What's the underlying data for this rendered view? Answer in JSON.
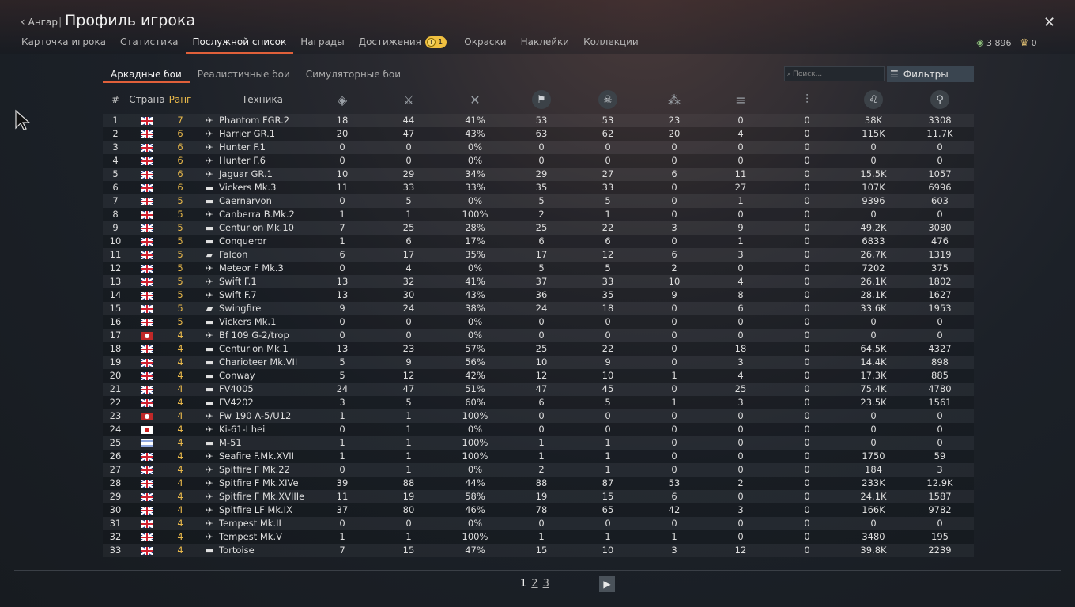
{
  "header": {
    "back_label": "Ангар",
    "title": "Профиль игрока",
    "tabs": [
      {
        "label": "Карточка игрока"
      },
      {
        "label": "Статистика"
      },
      {
        "label": "Послужной список"
      },
      {
        "label": "Награды"
      },
      {
        "label": "Достижения",
        "badge": "1"
      },
      {
        "label": "Окраски"
      },
      {
        "label": "Наклейки"
      },
      {
        "label": "Коллекции"
      }
    ],
    "currency_lions": "3 896",
    "currency_eagles": "0"
  },
  "modes": [
    {
      "label": "Аркадные бои"
    },
    {
      "label": "Реалистичные бои"
    },
    {
      "label": "Симуляторные бои"
    }
  ],
  "search": {
    "placeholder": "Поиск..."
  },
  "filters_label": "Фильтры",
  "table": {
    "headers": {
      "num": "#",
      "country": "Страна",
      "rank": "Ранг",
      "vehicle": "Техника"
    },
    "stat_icons": [
      "battles-icon",
      "victories-icon",
      "win-rate-icon",
      "respawns-icon",
      "deaths-icon",
      "air-kills-icon",
      "ground-kills-icon",
      "naval-kills-icon",
      "silver-lions-icon",
      "research-points-icon"
    ],
    "rows": [
      {
        "n": "1",
        "flag": "uk",
        "rank": "7",
        "type": "jet",
        "name": "Phantom FGR.2",
        "s": [
          "18",
          "44",
          "41%",
          "53",
          "53",
          "23",
          "0",
          "0",
          "38K",
          "3308"
        ]
      },
      {
        "n": "2",
        "flag": "uk",
        "rank": "6",
        "type": "jet",
        "name": "Harrier GR.1",
        "s": [
          "20",
          "47",
          "43%",
          "63",
          "62",
          "20",
          "4",
          "0",
          "115K",
          "11.7K"
        ]
      },
      {
        "n": "3",
        "flag": "uk",
        "rank": "6",
        "type": "jet",
        "name": "Hunter F.1",
        "s": [
          "0",
          "0",
          "0%",
          "0",
          "0",
          "0",
          "0",
          "0",
          "0",
          "0"
        ]
      },
      {
        "n": "4",
        "flag": "uk",
        "rank": "6",
        "type": "jet",
        "name": "Hunter F.6",
        "s": [
          "0",
          "0",
          "0%",
          "0",
          "0",
          "0",
          "0",
          "0",
          "0",
          "0"
        ]
      },
      {
        "n": "5",
        "flag": "uk",
        "rank": "6",
        "type": "jet",
        "name": "Jaguar GR.1",
        "s": [
          "10",
          "29",
          "34%",
          "29",
          "27",
          "6",
          "11",
          "0",
          "15.5K",
          "1057"
        ]
      },
      {
        "n": "6",
        "flag": "uk",
        "rank": "6",
        "type": "tank",
        "name": "Vickers Mk.3",
        "s": [
          "11",
          "33",
          "33%",
          "35",
          "33",
          "0",
          "27",
          "0",
          "107K",
          "6996"
        ]
      },
      {
        "n": "7",
        "flag": "uk",
        "rank": "5",
        "type": "tank",
        "name": "Caernarvon",
        "s": [
          "0",
          "5",
          "0%",
          "5",
          "5",
          "0",
          "1",
          "0",
          "9396",
          "603"
        ]
      },
      {
        "n": "8",
        "flag": "uk",
        "rank": "5",
        "type": "plane",
        "name": "Canberra B.Mk.2",
        "s": [
          "1",
          "1",
          "100%",
          "2",
          "1",
          "0",
          "0",
          "0",
          "0",
          "0"
        ]
      },
      {
        "n": "9",
        "flag": "uk",
        "rank": "5",
        "type": "tank",
        "name": "Centurion Mk.10",
        "s": [
          "7",
          "25",
          "28%",
          "25",
          "22",
          "3",
          "9",
          "0",
          "49.2K",
          "3080"
        ]
      },
      {
        "n": "10",
        "flag": "uk",
        "rank": "5",
        "type": "tank",
        "name": "Conqueror",
        "s": [
          "1",
          "6",
          "17%",
          "6",
          "6",
          "0",
          "1",
          "0",
          "6833",
          "476"
        ]
      },
      {
        "n": "11",
        "flag": "uk",
        "rank": "5",
        "type": "spaa",
        "name": "Falcon",
        "s": [
          "6",
          "17",
          "35%",
          "17",
          "12",
          "6",
          "3",
          "0",
          "26.7K",
          "1319"
        ]
      },
      {
        "n": "12",
        "flag": "uk",
        "rank": "5",
        "type": "jet",
        "name": "Meteor F Mk.3",
        "s": [
          "0",
          "4",
          "0%",
          "5",
          "5",
          "2",
          "0",
          "0",
          "7202",
          "375"
        ]
      },
      {
        "n": "13",
        "flag": "uk",
        "rank": "5",
        "type": "jet",
        "name": "Swift F.1",
        "s": [
          "13",
          "32",
          "41%",
          "37",
          "33",
          "10",
          "4",
          "0",
          "26.1K",
          "1802"
        ]
      },
      {
        "n": "14",
        "flag": "uk",
        "rank": "5",
        "type": "jet",
        "name": "Swift F.7",
        "s": [
          "13",
          "30",
          "43%",
          "36",
          "35",
          "9",
          "8",
          "0",
          "28.1K",
          "1627"
        ]
      },
      {
        "n": "15",
        "flag": "uk",
        "rank": "5",
        "type": "spaa",
        "name": "Swingfire",
        "s": [
          "9",
          "24",
          "38%",
          "24",
          "18",
          "0",
          "6",
          "0",
          "33.6K",
          "1953"
        ]
      },
      {
        "n": "16",
        "flag": "uk",
        "rank": "5",
        "type": "tank",
        "name": "Vickers Mk.1",
        "s": [
          "0",
          "0",
          "0%",
          "0",
          "0",
          "0",
          "0",
          "0",
          "0",
          "0"
        ]
      },
      {
        "n": "17",
        "flag": "de",
        "rank": "4",
        "type": "plane",
        "name": "Bf 109 G-2/trop",
        "s": [
          "0",
          "0",
          "0%",
          "0",
          "0",
          "0",
          "0",
          "0",
          "0",
          "0"
        ]
      },
      {
        "n": "18",
        "flag": "uk",
        "rank": "4",
        "type": "tank",
        "name": "Centurion Mk.1",
        "s": [
          "13",
          "23",
          "57%",
          "25",
          "22",
          "0",
          "18",
          "0",
          "64.5K",
          "4327"
        ]
      },
      {
        "n": "19",
        "flag": "uk",
        "rank": "4",
        "type": "tank",
        "name": "Charioteer Mk.VII",
        "s": [
          "5",
          "9",
          "56%",
          "10",
          "9",
          "0",
          "3",
          "0",
          "14.4K",
          "898"
        ]
      },
      {
        "n": "20",
        "flag": "uk",
        "rank": "4",
        "type": "tank",
        "name": "Conway",
        "s": [
          "5",
          "12",
          "42%",
          "12",
          "10",
          "1",
          "4",
          "0",
          "17.3K",
          "885"
        ]
      },
      {
        "n": "21",
        "flag": "uk",
        "rank": "4",
        "type": "tank",
        "name": "FV4005",
        "s": [
          "24",
          "47",
          "51%",
          "47",
          "45",
          "0",
          "25",
          "0",
          "75.4K",
          "4780"
        ]
      },
      {
        "n": "22",
        "flag": "uk",
        "rank": "4",
        "type": "tank",
        "name": "FV4202",
        "s": [
          "3",
          "5",
          "60%",
          "6",
          "5",
          "1",
          "3",
          "0",
          "23.5K",
          "1561"
        ]
      },
      {
        "n": "23",
        "flag": "de",
        "rank": "4",
        "type": "plane",
        "name": "Fw 190 A-5/U12",
        "s": [
          "1",
          "1",
          "100%",
          "0",
          "0",
          "0",
          "0",
          "0",
          "0",
          "0"
        ]
      },
      {
        "n": "24",
        "flag": "jp",
        "rank": "4",
        "type": "plane",
        "name": "Ki-61-I hei",
        "s": [
          "0",
          "1",
          "0%",
          "0",
          "0",
          "0",
          "0",
          "0",
          "0",
          "0"
        ]
      },
      {
        "n": "25",
        "flag": "il",
        "rank": "4",
        "type": "tank",
        "name": "M-51",
        "s": [
          "1",
          "1",
          "100%",
          "1",
          "1",
          "0",
          "0",
          "0",
          "0",
          "0"
        ]
      },
      {
        "n": "26",
        "flag": "uk",
        "rank": "4",
        "type": "plane",
        "name": "Seafire F.Mk.XVII",
        "s": [
          "1",
          "1",
          "100%",
          "1",
          "1",
          "0",
          "0",
          "0",
          "1750",
          "59"
        ]
      },
      {
        "n": "27",
        "flag": "uk",
        "rank": "4",
        "type": "plane",
        "name": "Spitfire F Mk.22",
        "s": [
          "0",
          "1",
          "0%",
          "2",
          "1",
          "0",
          "0",
          "0",
          "184",
          "3"
        ]
      },
      {
        "n": "28",
        "flag": "uk",
        "rank": "4",
        "type": "plane",
        "name": "Spitfire F Mk.XIVe",
        "s": [
          "39",
          "88",
          "44%",
          "88",
          "87",
          "53",
          "2",
          "0",
          "233K",
          "12.9K"
        ]
      },
      {
        "n": "29",
        "flag": "uk",
        "rank": "4",
        "type": "plane",
        "name": "Spitfire F Mk.XVIIIe",
        "s": [
          "11",
          "19",
          "58%",
          "19",
          "15",
          "6",
          "0",
          "0",
          "24.1K",
          "1587"
        ]
      },
      {
        "n": "30",
        "flag": "uk",
        "rank": "4",
        "type": "plane",
        "name": "Spitfire LF Mk.IX",
        "s": [
          "37",
          "80",
          "46%",
          "78",
          "65",
          "42",
          "3",
          "0",
          "166K",
          "9782"
        ]
      },
      {
        "n": "31",
        "flag": "uk",
        "rank": "4",
        "type": "plane",
        "name": "Tempest Mk.II",
        "s": [
          "0",
          "0",
          "0%",
          "0",
          "0",
          "0",
          "0",
          "0",
          "0",
          "0"
        ]
      },
      {
        "n": "32",
        "flag": "uk",
        "rank": "4",
        "type": "plane",
        "name": "Tempest Mk.V",
        "s": [
          "1",
          "1",
          "100%",
          "1",
          "1",
          "1",
          "0",
          "0",
          "3480",
          "195"
        ]
      },
      {
        "n": "33",
        "flag": "uk",
        "rank": "4",
        "type": "tank",
        "name": "Tortoise",
        "s": [
          "7",
          "15",
          "47%",
          "15",
          "10",
          "3",
          "12",
          "0",
          "39.8K",
          "2239"
        ]
      }
    ]
  },
  "pagination": {
    "pages": [
      "1",
      "2",
      "3"
    ],
    "current": "1"
  }
}
